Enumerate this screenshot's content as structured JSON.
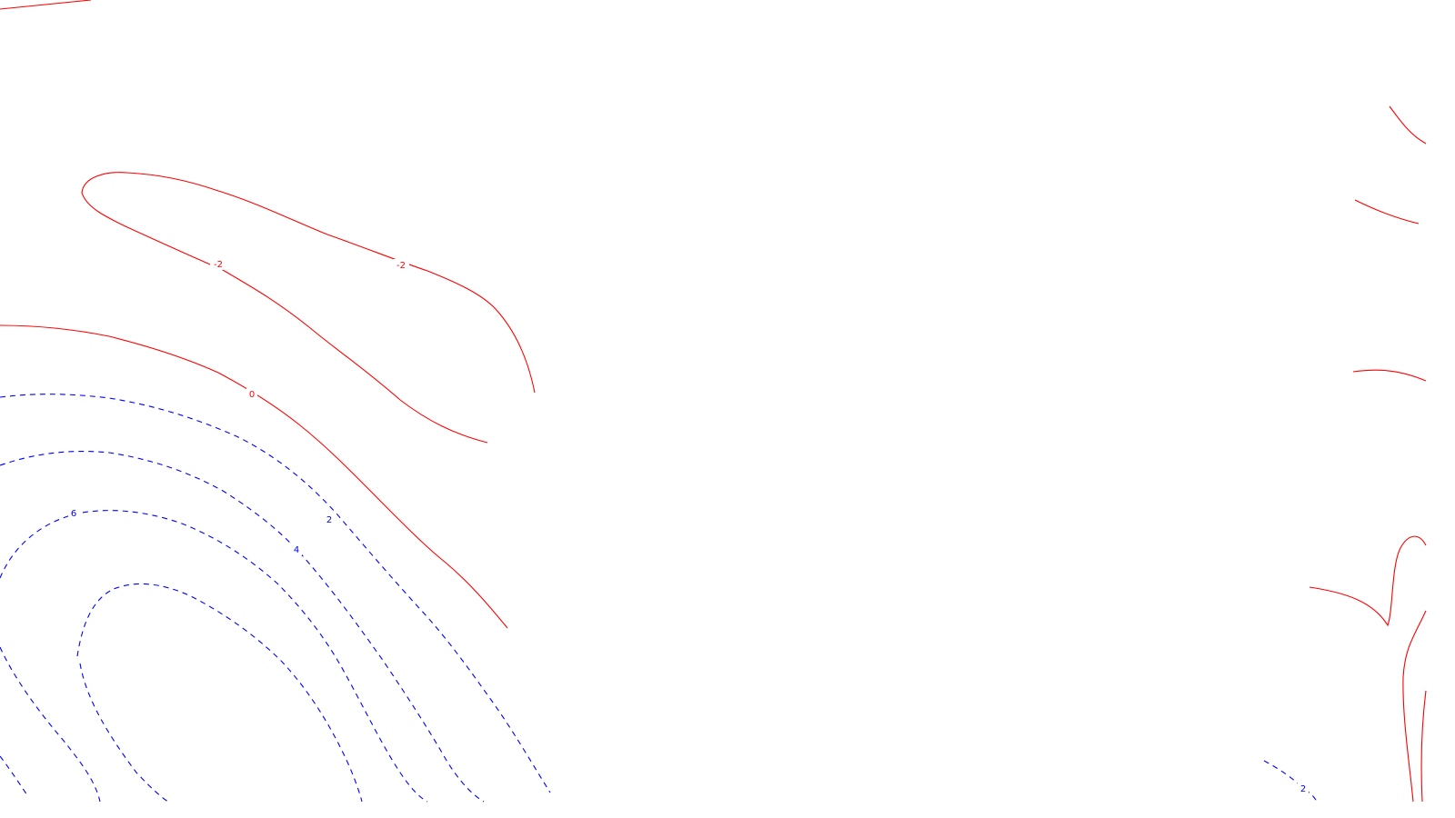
{
  "map": {
    "colors": {
      "background": "#ffffff",
      "negative_and_zero": "#ff0000",
      "positive": "#0000ff"
    },
    "contour_labels": {
      "neg2_a": "-2",
      "neg2_b": "-2",
      "zero": "0",
      "pos2": "2",
      "pos4": "4",
      "pos6": "6",
      "pos2_right": "2"
    }
  }
}
